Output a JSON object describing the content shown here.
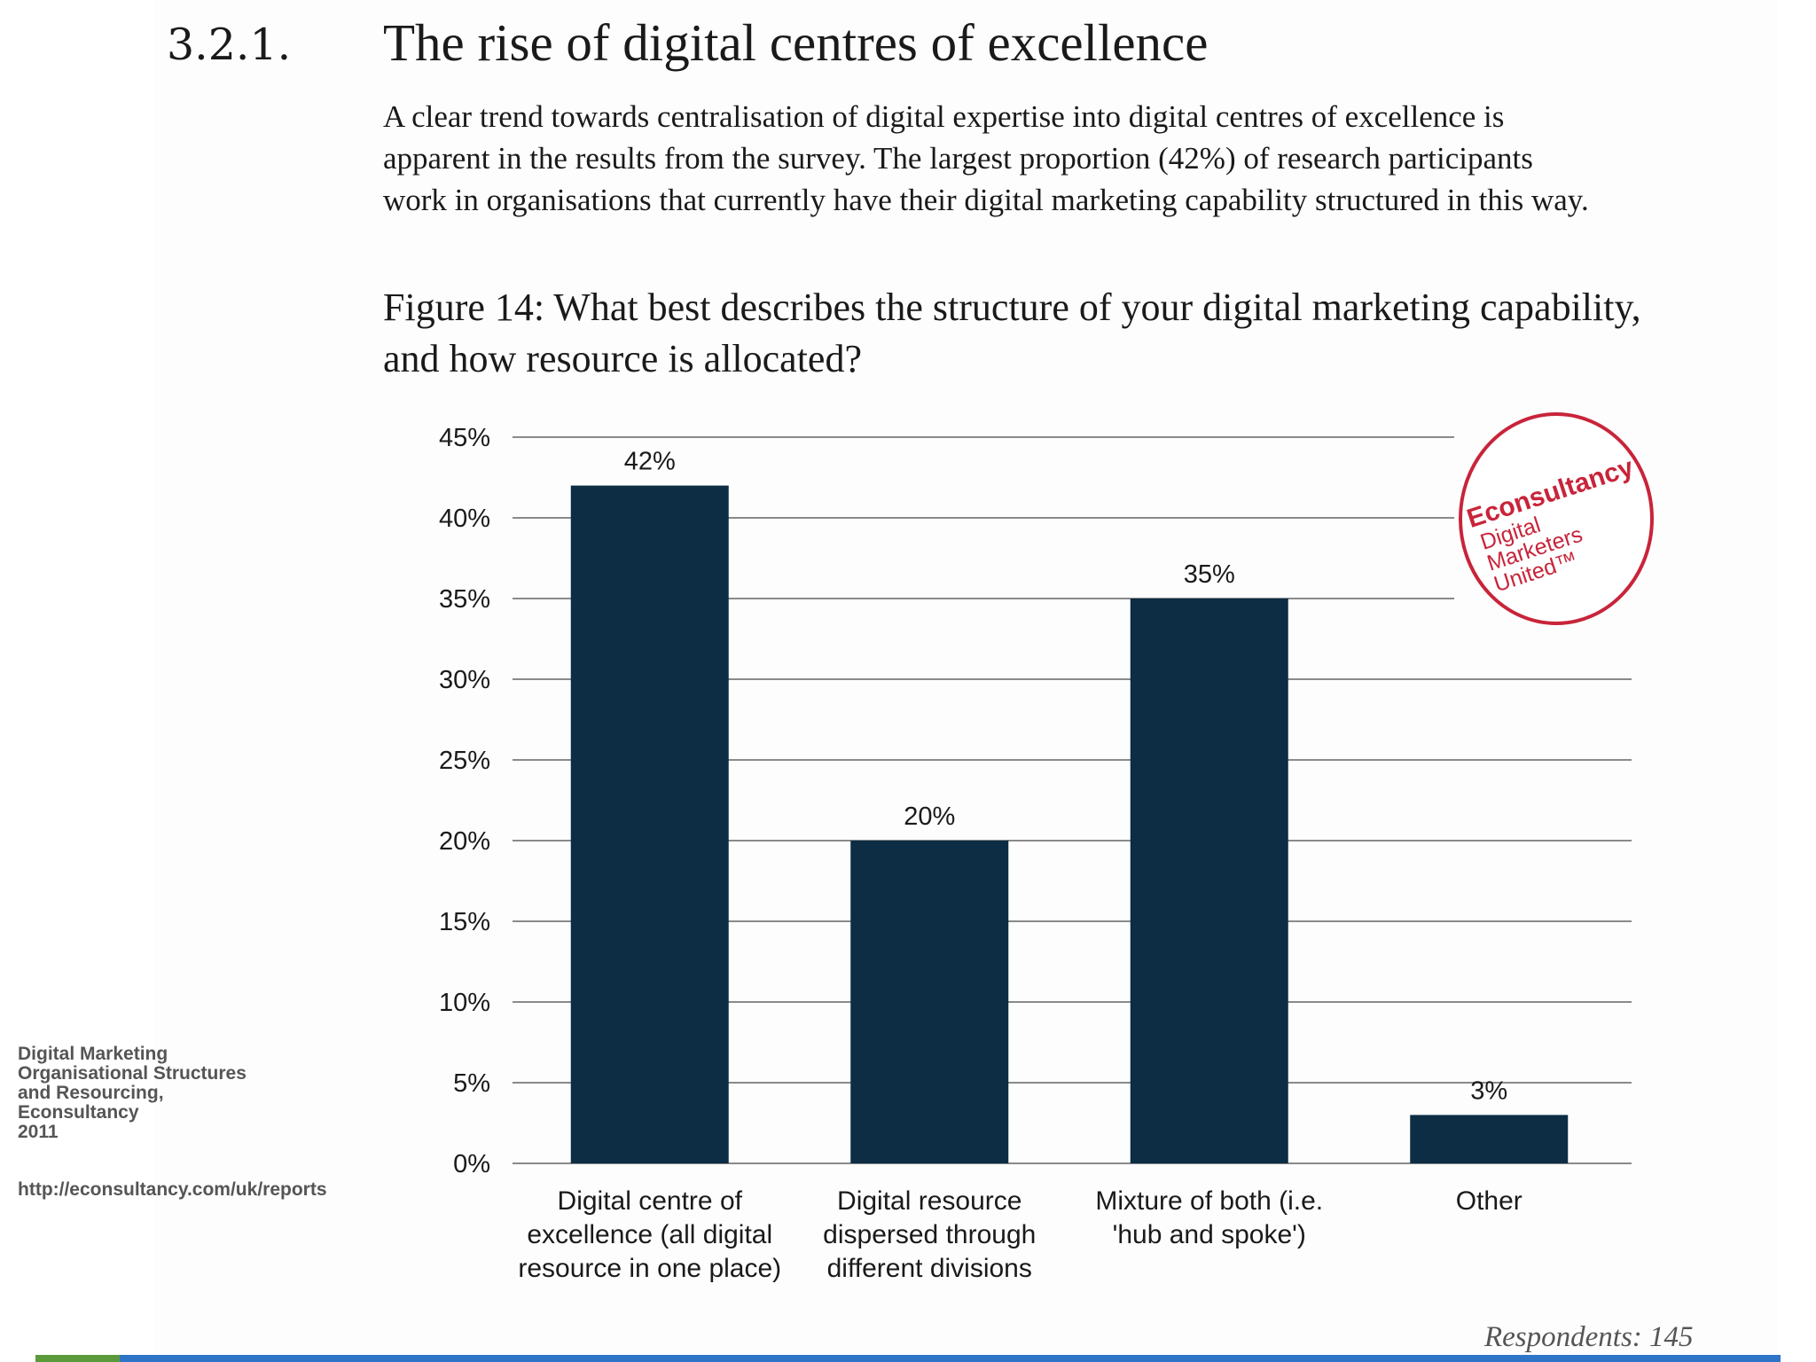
{
  "section": {
    "number": "3.2.1.",
    "title": "The rise of digital centres of excellence",
    "intro_lines": [
      "A clear trend towards centralisation of digital expertise into digital centres of excellence is",
      "apparent in the results from the survey. The largest proportion (42%) of research participants",
      "work in organisations that currently have their digital marketing capability structured in this way."
    ]
  },
  "figure": {
    "title_lines": [
      "Figure 14: What best describes the structure of your digital marketing capability,",
      "and how resource is allocated?"
    ],
    "respondents": "Respondents: 145"
  },
  "logo": {
    "brand": "Econsultancy",
    "tagline_lines": [
      "Digital",
      "Marketers",
      "United™"
    ],
    "color": "#c8243a"
  },
  "source": {
    "lines": [
      "Digital Marketing",
      "Organisational Structures",
      "and Resourcing,",
      "Econsultancy",
      "2011"
    ],
    "url": "http://econsultancy.com/uk/reports"
  },
  "chart_data": {
    "type": "bar",
    "categories": [
      [
        "Digital centre of",
        "excellence (all digital",
        "resource in one place)"
      ],
      [
        "Digital resource",
        "dispersed through",
        "different divisions"
      ],
      [
        "Mixture of both (i.e.",
        "'hub and spoke')"
      ],
      [
        "Other"
      ]
    ],
    "values": [
      42,
      20,
      35,
      3
    ],
    "data_labels": [
      "42%",
      "20%",
      "35%",
      "3%"
    ],
    "yticks": [
      "0%",
      "5%",
      "10%",
      "15%",
      "20%",
      "25%",
      "30%",
      "35%",
      "40%",
      "45%"
    ],
    "ylim": [
      0,
      45
    ],
    "grid": true,
    "bar_color": "#0c2d44",
    "grid_color": "#8a8a8a"
  }
}
